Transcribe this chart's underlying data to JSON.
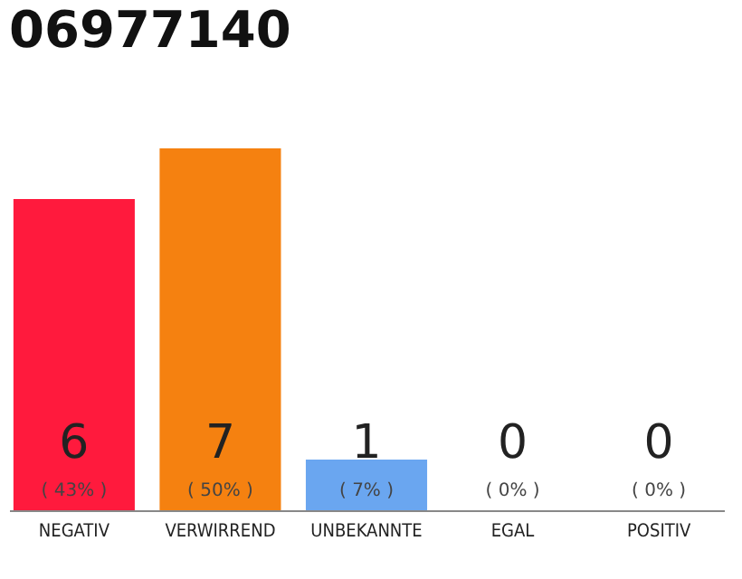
{
  "chart_data": {
    "type": "bar",
    "title": "06977140",
    "categories": [
      "NEGATIV",
      "VERWIRREND",
      "UNBEKANNTE",
      "EGAL",
      "POSITIV"
    ],
    "values": [
      43,
      50,
      7,
      0,
      0
    ],
    "colors": [
      "#ff1a3d",
      "#f58110",
      "#6aa6f0",
      "#eeeeee",
      "#eeeeee"
    ],
    "value_labels": [
      "( 43% )",
      "( 50% )",
      "( 7% )",
      "( 0% )",
      "( 0% )"
    ],
    "annotations": [
      "6",
      "7",
      "1",
      "0",
      "0"
    ],
    "tick_labels": "x"
  }
}
